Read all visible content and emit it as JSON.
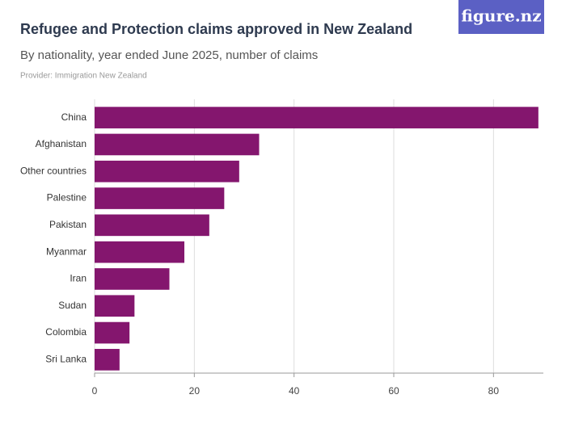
{
  "logo": "figure.nz",
  "chart_data": {
    "type": "barh",
    "title": "Refugee and Protection claims approved in New Zealand",
    "subtitle": "By nationality, year ended June 2025, number of claims",
    "provider": "Provider: Immigration New Zealand",
    "categories": [
      "China",
      "Afghanistan",
      "Other countries",
      "Palestine",
      "Pakistan",
      "Myanmar",
      "Iran",
      "Sudan",
      "Colombia",
      "Sri Lanka"
    ],
    "values": [
      89,
      33,
      29,
      26,
      23,
      18,
      15,
      8,
      7,
      5
    ],
    "color": "#84166e",
    "xlim": [
      0,
      90
    ],
    "xticks": [
      0,
      20,
      40,
      60,
      80
    ],
    "grid": true
  }
}
